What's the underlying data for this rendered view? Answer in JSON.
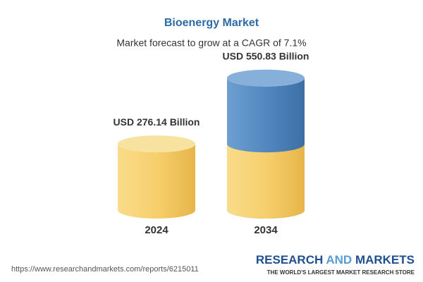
{
  "chart_data": {
    "type": "cylinder",
    "title": "Bioenergy Market",
    "subtitle": "Market forecast to grow at a CAGR of 7.1%",
    "categories": [
      "2024",
      "2034"
    ],
    "values": [
      276.14,
      550.83
    ],
    "value_labels": [
      "USD 276.14 Billion",
      "USD 550.83 Billion"
    ],
    "colors": {
      "base": "#f4c95d",
      "growth": "#4f86bd"
    }
  },
  "footer": {
    "source": "https://www.researchandmarkets.com/reports/6215011",
    "logo": [
      "RESEARCH",
      "AND",
      "MARKETS"
    ],
    "tagline": "THE WORLD'S LARGEST MARKET RESEARCH STORE"
  }
}
